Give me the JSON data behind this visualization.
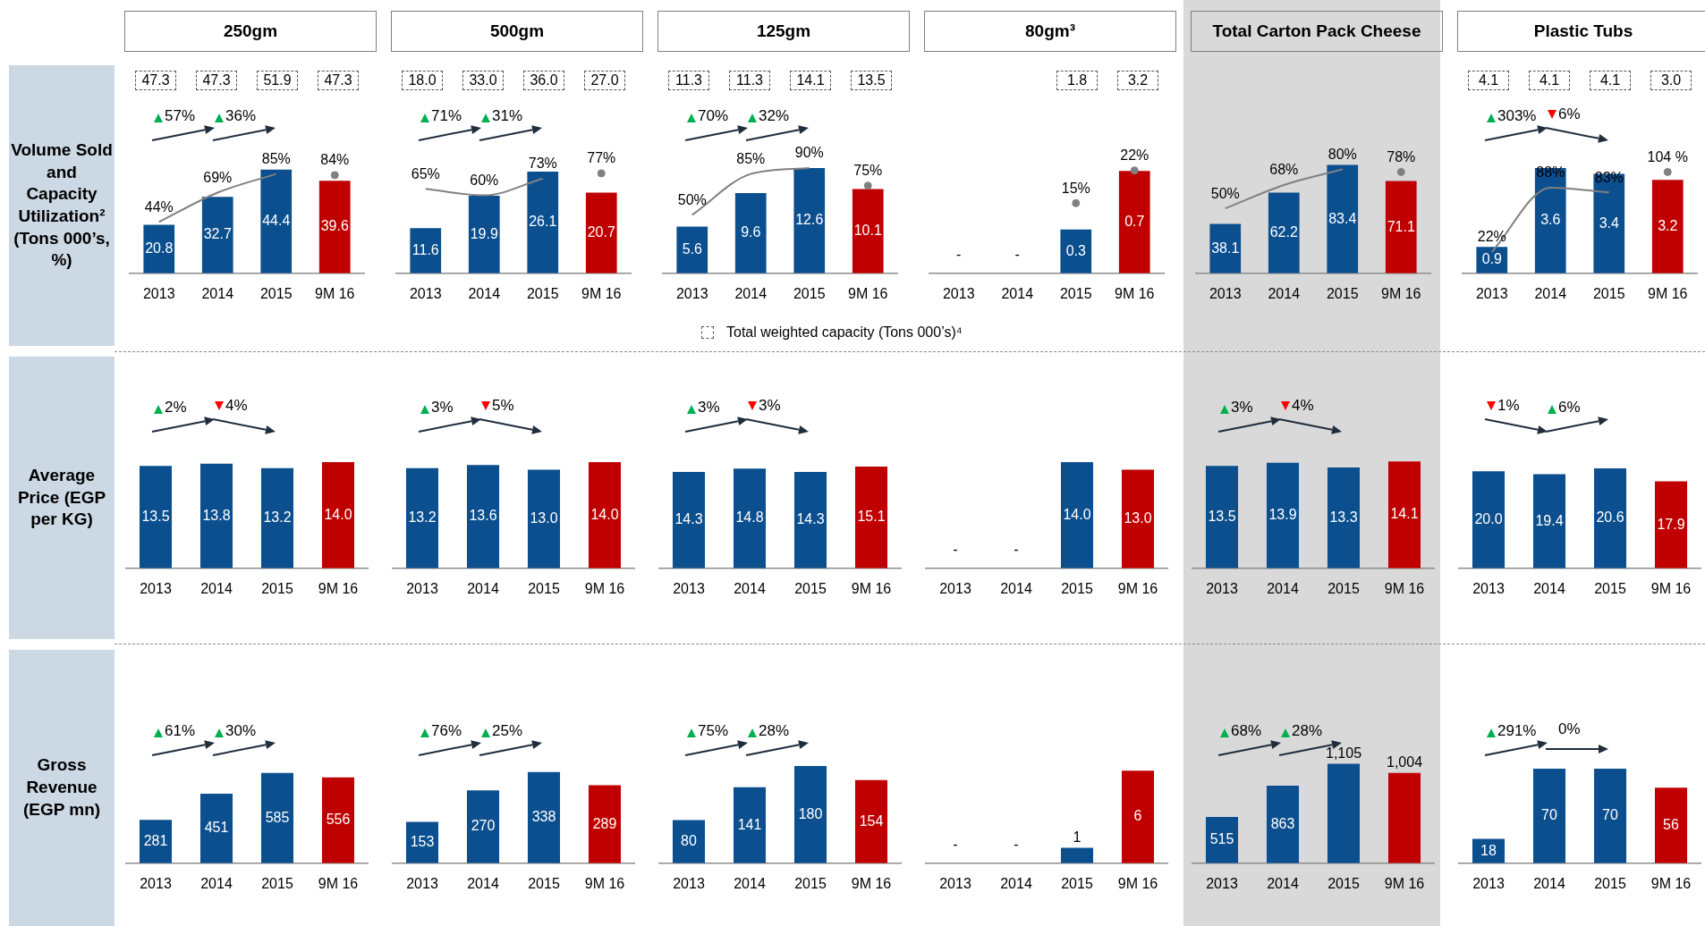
{
  "chart_data": [
    {
      "type": "bar",
      "title": "250gm",
      "ylabel": "Volume Sold and Capacity Utilization² (Tons 000’s, %)",
      "legend_title": "Total weighted capacity (Tons 000’s)⁴",
      "categories": [
        "2013",
        "2014",
        "2015",
        "9M 16"
      ],
      "series": [
        {
          "type": "bar",
          "colors": [
            "#0b4f8f",
            "#0b4f8f",
            "#0b4f8f",
            "#c00000"
          ],
          "values": [
            20.8,
            32.7,
            44.4,
            39.6
          ],
          "value_labels": [
            "20.8",
            "32.7",
            "44.4",
            "39.6"
          ]
        },
        {
          "type": "line",
          "axis": "y2",
          "color": "#808080",
          "marker": "none",
          "values": [
            44,
            69,
            85,
            null
          ],
          "value_labels": [
            "44%",
            "69%",
            "85%",
            null
          ]
        },
        {
          "type": "scatter",
          "axis": "y2",
          "color": "#808080",
          "marker": "circle",
          "values": [
            null,
            null,
            null,
            84
          ],
          "value_labels": [
            null,
            null,
            null,
            "84%"
          ]
        }
      ],
      "annotations": [
        "47.3",
        "47.3",
        "51.9",
        "47.3",
        "57%",
        "36%"
      ]
    },
    {
      "type": "bar",
      "title": "500gm",
      "categories": [
        "2013",
        "2014",
        "2015",
        "9M 16"
      ],
      "series": [
        {
          "type": "bar",
          "colors": [
            "#0b4f8f",
            "#0b4f8f",
            "#0b4f8f",
            "#c00000"
          ],
          "values": [
            11.6,
            19.9,
            26.1,
            20.7
          ],
          "value_labels": [
            "11.6",
            "19.9",
            "26.1",
            "20.7"
          ]
        },
        {
          "type": "line",
          "axis": "y2",
          "color": "#808080",
          "marker": "none",
          "values": [
            65,
            60,
            73,
            null
          ],
          "value_labels": [
            "65%",
            "60%",
            "73%",
            null
          ]
        },
        {
          "type": "scatter",
          "axis": "y2",
          "color": "#808080",
          "marker": "circle",
          "values": [
            null,
            null,
            null,
            77
          ],
          "value_labels": [
            null,
            null,
            null,
            "77%"
          ]
        }
      ],
      "annotations": [
        "18.0",
        "33.0",
        "36.0",
        "27.0",
        "71%",
        "31%"
      ]
    },
    {
      "type": "bar",
      "title": "125gm",
      "categories": [
        "2013",
        "2014",
        "2015",
        "9M 16"
      ],
      "series": [
        {
          "type": "bar",
          "colors": [
            "#0b4f8f",
            "#0b4f8f",
            "#0b4f8f",
            "#c00000"
          ],
          "values": [
            5.6,
            9.6,
            12.6,
            10.1
          ],
          "value_labels": [
            "5.6",
            "9.6",
            "12.6",
            "10.1"
          ]
        },
        {
          "type": "line",
          "axis": "y2",
          "color": "#808080",
          "marker": "none",
          "values": [
            50,
            85,
            90,
            null
          ],
          "value_labels": [
            "50%",
            "85%",
            "90%",
            null
          ]
        },
        {
          "type": "scatter",
          "axis": "y2",
          "color": "#808080",
          "marker": "circle",
          "values": [
            null,
            null,
            null,
            75
          ],
          "value_labels": [
            null,
            null,
            null,
            "75%"
          ]
        }
      ],
      "annotations": [
        "11.3",
        "11.3",
        "14.1",
        "13.5",
        "70%",
        "32%"
      ]
    },
    {
      "type": "bar",
      "title": "80gm³",
      "categories": [
        "2013",
        "2014",
        "2015",
        "9M 16"
      ],
      "series": [
        {
          "type": "bar",
          "colors": [
            "#0b4f8f",
            "#0b4f8f",
            "#0b4f8f",
            "#c00000"
          ],
          "values": [
            null,
            null,
            0.3,
            0.7
          ],
          "value_labels": [
            "-",
            "-",
            "0.3",
            "0.7"
          ]
        },
        {
          "type": "scatter",
          "axis": "y2",
          "color": "#808080",
          "marker": "circle",
          "values": [
            null,
            null,
            15,
            22
          ],
          "value_labels": [
            null,
            null,
            "15%",
            "22%"
          ]
        }
      ],
      "annotations": [
        "1.8",
        "3.2"
      ]
    },
    {
      "type": "bar",
      "title": "Total Carton Pack Cheese",
      "categories": [
        "2013",
        "2014",
        "2015",
        "9M 16"
      ],
      "series": [
        {
          "type": "bar",
          "colors": [
            "#0b4f8f",
            "#0b4f8f",
            "#0b4f8f",
            "#c00000"
          ],
          "values": [
            38.1,
            62.2,
            83.4,
            71.1
          ],
          "value_labels": [
            "38.1",
            "62.2",
            "83.4",
            "71.1"
          ]
        },
        {
          "type": "line",
          "axis": "y2",
          "color": "#808080",
          "marker": "none",
          "values": [
            50,
            68,
            80,
            null
          ],
          "value_labels": [
            "50%",
            "68%",
            "80%",
            null
          ]
        },
        {
          "type": "scatter",
          "axis": "y2",
          "color": "#808080",
          "marker": "circle",
          "values": [
            null,
            null,
            null,
            78
          ],
          "value_labels": [
            null,
            null,
            null,
            "78%"
          ]
        }
      ]
    },
    {
      "type": "bar",
      "title": "Plastic Tubs",
      "categories": [
        "2013",
        "2014",
        "2015",
        "9M 16"
      ],
      "series": [
        {
          "type": "bar",
          "colors": [
            "#0b4f8f",
            "#0b4f8f",
            "#0b4f8f",
            "#c00000"
          ],
          "values": [
            0.9,
            3.6,
            3.4,
            3.2
          ],
          "value_labels": [
            "0.9",
            "3.6",
            "3.4",
            "3.2"
          ]
        },
        {
          "type": "line",
          "axis": "y2",
          "color": "#808080",
          "marker": "none",
          "values": [
            22,
            88,
            83,
            null
          ],
          "value_labels": [
            "22%",
            "88%",
            "83%",
            null
          ]
        },
        {
          "type": "scatter",
          "axis": "y2",
          "color": "#808080",
          "marker": "circle",
          "values": [
            null,
            null,
            null,
            104
          ],
          "value_labels": [
            null,
            null,
            null,
            "104 %"
          ]
        }
      ],
      "annotations": [
        "4.1",
        "4.1",
        "4.1",
        "3.0",
        "303%",
        "6%"
      ]
    },
    {
      "type": "bar",
      "ylabel": "Average Price (EGP per KG)",
      "categories": [
        "2013",
        "2014",
        "2015",
        "9M 16"
      ],
      "series": [
        {
          "type": "bar",
          "colors": [
            "#0b4f8f",
            "#0b4f8f",
            "#0b4f8f",
            "#c00000"
          ],
          "values": [
            13.5,
            13.8,
            13.2,
            14.0
          ],
          "value_labels": [
            "13.5",
            "13.8",
            "13.2",
            "14.0"
          ]
        }
      ],
      "annotations": [
        "2%",
        "4%"
      ]
    },
    {
      "type": "bar",
      "categories": [
        "2013",
        "2014",
        "2015",
        "9M 16"
      ],
      "series": [
        {
          "type": "bar",
          "colors": [
            "#0b4f8f",
            "#0b4f8f",
            "#0b4f8f",
            "#c00000"
          ],
          "values": [
            13.2,
            13.6,
            13.0,
            14.0
          ],
          "value_labels": [
            "13.2",
            "13.6",
            "13.0",
            "14.0"
          ]
        }
      ],
      "annotations": [
        "3%",
        "5%"
      ]
    },
    {
      "type": "bar",
      "categories": [
        "2013",
        "2014",
        "2015",
        "9M 16"
      ],
      "series": [
        {
          "type": "bar",
          "colors": [
            "#0b4f8f",
            "#0b4f8f",
            "#0b4f8f",
            "#c00000"
          ],
          "values": [
            14.3,
            14.8,
            14.3,
            15.1
          ],
          "value_labels": [
            "14.3",
            "14.8",
            "14.3",
            "15.1"
          ]
        }
      ],
      "annotations": [
        "3%",
        "3%"
      ]
    },
    {
      "type": "bar",
      "categories": [
        "2013",
        "2014",
        "2015",
        "9M 16"
      ],
      "series": [
        {
          "type": "bar",
          "colors": [
            "#0b4f8f",
            "#0b4f8f",
            "#0b4f8f",
            "#c00000"
          ],
          "values": [
            null,
            null,
            14.0,
            13.0
          ],
          "value_labels": [
            "-",
            "-",
            "14.0",
            "13.0"
          ]
        }
      ]
    },
    {
      "type": "bar",
      "categories": [
        "2013",
        "2014",
        "2015",
        "9M 16"
      ],
      "series": [
        {
          "type": "bar",
          "colors": [
            "#0b4f8f",
            "#0b4f8f",
            "#0b4f8f",
            "#c00000"
          ],
          "values": [
            13.5,
            13.9,
            13.3,
            14.1
          ],
          "value_labels": [
            "13.5",
            "13.9",
            "13.3",
            "14.1"
          ]
        }
      ],
      "annotations": [
        "3%",
        "4%"
      ]
    },
    {
      "type": "bar",
      "categories": [
        "2013",
        "2014",
        "2015",
        "9M 16"
      ],
      "series": [
        {
          "type": "bar",
          "colors": [
            "#0b4f8f",
            "#0b4f8f",
            "#0b4f8f",
            "#c00000"
          ],
          "values": [
            20.0,
            19.4,
            20.6,
            17.9
          ],
          "value_labels": [
            "20.0",
            "19.4",
            "20.6",
            "17.9"
          ]
        }
      ],
      "annotations": [
        "1%",
        "6%"
      ]
    },
    {
      "type": "bar",
      "ylabel": "Gross Revenue (EGP mn)",
      "categories": [
        "2013",
        "2014",
        "2015",
        "9M 16"
      ],
      "series": [
        {
          "type": "bar",
          "colors": [
            "#0b4f8f",
            "#0b4f8f",
            "#0b4f8f",
            "#c00000"
          ],
          "values": [
            281,
            451,
            585,
            556
          ],
          "value_labels": [
            "281",
            "451",
            "585",
            "556"
          ]
        }
      ],
      "annotations": [
        "61%",
        "30%"
      ]
    },
    {
      "type": "bar",
      "categories": [
        "2013",
        "2014",
        "2015",
        "9M 16"
      ],
      "series": [
        {
          "type": "bar",
          "colors": [
            "#0b4f8f",
            "#0b4f8f",
            "#0b4f8f",
            "#c00000"
          ],
          "values": [
            153,
            270,
            338,
            289
          ],
          "value_labels": [
            "153",
            "270",
            "338",
            "289"
          ]
        }
      ],
      "annotations": [
        "76%",
        "25%"
      ]
    },
    {
      "type": "bar",
      "categories": [
        "2013",
        "2014",
        "2015",
        "9M 16"
      ],
      "series": [
        {
          "type": "bar",
          "colors": [
            "#0b4f8f",
            "#0b4f8f",
            "#0b4f8f",
            "#c00000"
          ],
          "values": [
            80,
            141,
            180,
            154
          ],
          "value_labels": [
            "80",
            "141",
            "180",
            "154"
          ]
        }
      ],
      "annotations": [
        "75%",
        "28%"
      ]
    },
    {
      "type": "bar",
      "categories": [
        "2013",
        "2014",
        "2015",
        "9M 16"
      ],
      "series": [
        {
          "type": "bar",
          "colors": [
            "#0b4f8f",
            "#0b4f8f",
            "#0b4f8f",
            "#c00000"
          ],
          "values": [
            null,
            null,
            1,
            6
          ],
          "value_labels": [
            "-",
            "-",
            "1",
            "6"
          ]
        }
      ]
    },
    {
      "type": "bar",
      "categories": [
        "2013",
        "2014",
        "2015",
        "9M 16"
      ],
      "series": [
        {
          "type": "bar",
          "colors": [
            "#0b4f8f",
            "#0b4f8f",
            "#0b4f8f",
            "#c00000"
          ],
          "values": [
            515,
            863,
            1105,
            1004
          ],
          "value_labels": [
            "515",
            "863",
            "1,105",
            "1,004"
          ]
        }
      ],
      "annotations": [
        "68%",
        "28%"
      ]
    },
    {
      "type": "bar",
      "categories": [
        "2013",
        "2014",
        "2015",
        "9M 16"
      ],
      "series": [
        {
          "type": "bar",
          "colors": [
            "#0b4f8f",
            "#0b4f8f",
            "#0b4f8f",
            "#c00000"
          ],
          "values": [
            18,
            70,
            70,
            56
          ],
          "value_labels": [
            "18",
            "70",
            "70",
            "56"
          ]
        }
      ],
      "annotations": [
        "291%",
        "0%"
      ]
    }
  ]
}
